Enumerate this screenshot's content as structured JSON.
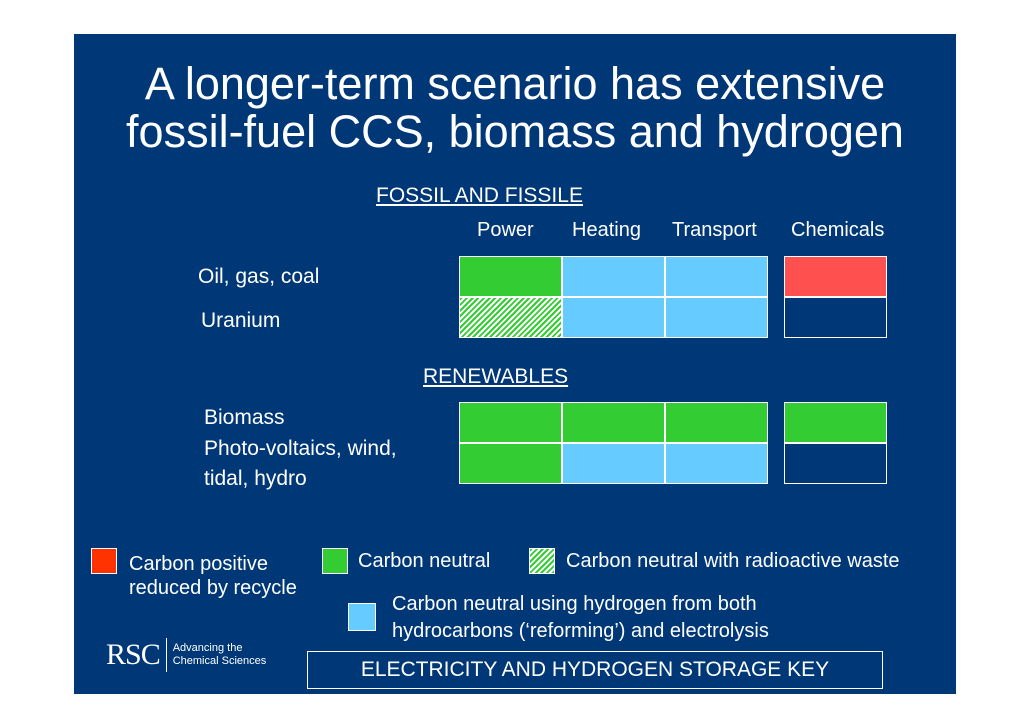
{
  "title": {
    "line1": "A longer-term scenario has extensive",
    "line2": "fossil-fuel CCS, biomass and hydrogen"
  },
  "fossil": {
    "heading": "FOSSIL AND FISSILE",
    "columns": [
      "Power",
      "Heating",
      "Transport",
      "Chemicals"
    ],
    "rows": [
      {
        "label": "Oil, gas, coal",
        "cells": [
          "carbon-neutral",
          "carbon-neutral-hydrogen",
          "carbon-neutral-hydrogen",
          "carbon-positive"
        ]
      },
      {
        "label": "Uranium",
        "cells": [
          "carbon-neutral-radioactive",
          "carbon-neutral-hydrogen",
          "carbon-neutral-hydrogen",
          "none"
        ]
      }
    ]
  },
  "renewables": {
    "heading": "RENEWABLES",
    "rows": [
      {
        "label": "Biomass",
        "cells": [
          "carbon-neutral",
          "carbon-neutral",
          "carbon-neutral",
          "carbon-neutral"
        ]
      },
      {
        "label_line1": "Photo-voltaics, wind,",
        "label_line2": "tidal, hydro",
        "cells": [
          "carbon-neutral",
          "carbon-neutral-hydrogen",
          "carbon-neutral-hydrogen",
          "none"
        ]
      }
    ]
  },
  "key": {
    "carbon_positive_line1": "Carbon positive",
    "carbon_positive_line2": "reduced by recycle",
    "carbon_neutral": "Carbon neutral",
    "carbon_neutral_radioactive": "Carbon neutral with radioactive waste",
    "carbon_neutral_hydrogen_line1": "Carbon neutral using hydrogen from both",
    "carbon_neutral_hydrogen_line2": "hydrocarbons (‘reforming’) and electrolysis"
  },
  "colors": {
    "background": "#003877",
    "carbon_positive": "#ff5050",
    "carbon_positive_key": "#ff3300",
    "carbon_neutral": "#33cc33",
    "carbon_neutral_hydrogen": "#66ccff"
  },
  "bottom_box": "ELECTRICITY AND HYDROGEN STORAGE KEY",
  "logo": {
    "mark": "RSC",
    "tagline_line1": "Advancing the",
    "tagline_line2": "Chemical Sciences"
  }
}
